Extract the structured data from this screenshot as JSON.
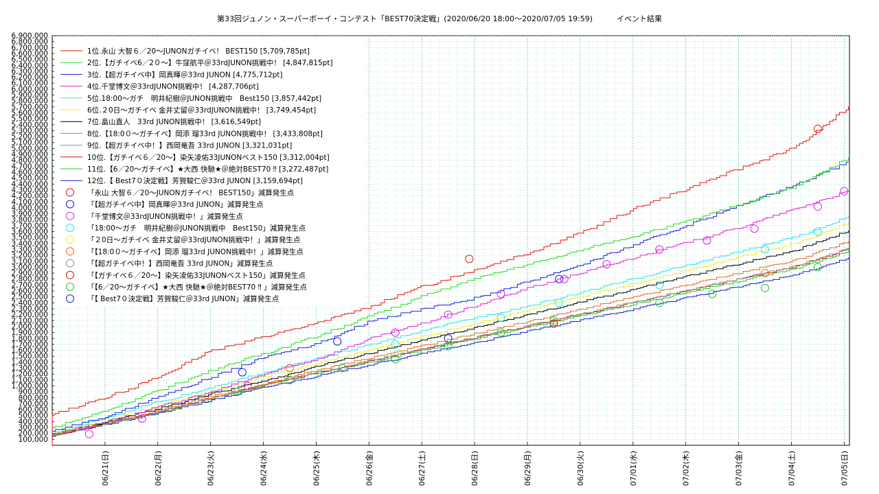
{
  "chart_data": {
    "type": "line",
    "title": "第33回ジュノン・スーパーボーイ・コンテスト「BEST70決定戦」(2020/06/20 18:00〜2020/07/05 19:59)          イベント結果",
    "xlabel": "",
    "ylabel": "",
    "x_tick_labels": [
      "06/21(日)",
      "06/22(月)",
      "06/23(火)",
      "06/24(水)",
      "06/25(木)",
      "06/26(金)",
      "06/27(土)",
      "06/28(日)",
      "06/29(月)",
      "06/30(火)",
      "07/01(水)",
      "07/02(木)",
      "07/03(金)",
      "07/04(土)",
      "07/05(日)"
    ],
    "x_range_days": [
      0,
      15.1
    ],
    "ylim": [
      0,
      6900000
    ],
    "y_tick_step": 100000,
    "grid": true,
    "legend_position": "top-left",
    "series": [
      {
        "name": "1位.永山 大智６／20〜JUNONガチイベ！ BEST150 [5,709,785pt]",
        "color": "#e8140c",
        "final": 5709785,
        "curve": [
          0.09,
          0.14,
          0.2,
          0.28,
          0.32,
          0.36,
          0.41,
          0.47,
          0.52,
          0.57,
          0.63,
          0.7,
          0.76,
          0.82,
          0.88,
          1.0
        ],
        "marks": [
          [
            7.9,
            3140000
          ],
          [
            14.5,
            5330000
          ]
        ]
      },
      {
        "name": "2位.【ガチイベ6／2０〜】牛窪航平＠33rdJUNON挑戦中！ [4,847,815pt]",
        "color": "#22dd22",
        "final": 4847815,
        "curve": [
          0.06,
          0.12,
          0.19,
          0.26,
          0.32,
          0.38,
          0.45,
          0.52,
          0.58,
          0.63,
          0.68,
          0.73,
          0.78,
          0.84,
          0.9,
          1.0
        ],
        "marks": []
      },
      {
        "name": "3位.【超ガチイベ中】岡真暉＠33rd JUNON [4,775,712pt]",
        "color": "#1a1ae0",
        "final": 4775712,
        "curve": [
          0.05,
          0.1,
          0.17,
          0.24,
          0.31,
          0.36,
          0.44,
          0.48,
          0.52,
          0.58,
          0.64,
          0.71,
          0.78,
          0.85,
          0.92,
          1.0
        ],
        "marks": [
          [
            3.6,
            1230000
          ],
          [
            5.4,
            1750000
          ],
          [
            7.5,
            1800000
          ],
          [
            9.6,
            2800000
          ]
        ]
      },
      {
        "name": "4位.千堂博文＠33rdJUNON挑戦中！ [4,287,706pt]",
        "color": "#e020e0",
        "final": 4287706,
        "curve": [
          0.04,
          0.09,
          0.15,
          0.21,
          0.28,
          0.34,
          0.42,
          0.48,
          0.55,
          0.62,
          0.68,
          0.74,
          0.8,
          0.86,
          0.93,
          1.0
        ],
        "marks": [
          [
            0.7,
            190000
          ],
          [
            1.7,
            450000
          ],
          [
            3.7,
            1000000
          ],
          [
            6.5,
            1900000
          ],
          [
            7.5,
            2200000
          ],
          [
            8.5,
            2550000
          ],
          [
            9.7,
            2800000
          ],
          [
            10.5,
            3050000
          ],
          [
            11.5,
            3300000
          ],
          [
            12.4,
            3450000
          ],
          [
            13.3,
            3650000
          ],
          [
            14.5,
            4020000
          ],
          [
            15.0,
            4280000
          ]
        ]
      },
      {
        "name": "5位.18:00〜ガチ　明井紀樹＠JUNON挑戦中　Best150 [3,857,442pt]",
        "color": "#22e8e8",
        "final": 3857442,
        "curve": [
          0.05,
          0.12,
          0.19,
          0.25,
          0.32,
          0.38,
          0.44,
          0.5,
          0.56,
          0.61,
          0.67,
          0.73,
          0.79,
          0.85,
          0.91,
          1.0
        ],
        "marks": [
          [
            6.5,
            1700000
          ],
          [
            8.5,
            2150000
          ],
          [
            9.6,
            2400000
          ],
          [
            11.5,
            2700000
          ],
          [
            13.5,
            3300000
          ],
          [
            14.5,
            3600000
          ]
        ]
      },
      {
        "name": "6位.２0日〜ガチイベ 金井丈留＠33rdJUNON挑戦中！ [3,749,454pt]",
        "color": "#f0f020",
        "final": 3749454,
        "curve": [
          0.05,
          0.11,
          0.18,
          0.24,
          0.31,
          0.37,
          0.43,
          0.49,
          0.55,
          0.61,
          0.67,
          0.73,
          0.79,
          0.85,
          0.91,
          1.0
        ],
        "marks": []
      },
      {
        "name": "7位.畠山直人　33rd JUNON挑戦中！ [3,616,549pt]",
        "color": "#000000",
        "final": 3616549,
        "curve": [
          0.05,
          0.11,
          0.17,
          0.24,
          0.3,
          0.37,
          0.43,
          0.49,
          0.55,
          0.61,
          0.67,
          0.73,
          0.79,
          0.85,
          0.91,
          1.0
        ],
        "marks": []
      },
      {
        "name": "8位.【18:0０〜ガチイベ】岡添 瑠33rd JUNON挑戦中！ [3,433,808pt]",
        "color": "#e86a1a",
        "final": 3433808,
        "curve": [
          0.05,
          0.11,
          0.17,
          0.24,
          0.3,
          0.37,
          0.43,
          0.49,
          0.55,
          0.61,
          0.67,
          0.73,
          0.79,
          0.85,
          0.91,
          1.0
        ],
        "marks": [
          [
            4.5,
            1300000
          ],
          [
            13.5,
            2900000
          ]
        ]
      },
      {
        "name": "9位.【超ガチイベ中！】西岡竜吾 33rd JUNON [3,321,031pt]",
        "color": "#909090",
        "final": 3321031,
        "curve": [
          0.05,
          0.11,
          0.17,
          0.24,
          0.31,
          0.37,
          0.43,
          0.49,
          0.55,
          0.61,
          0.67,
          0.73,
          0.79,
          0.85,
          0.91,
          1.0
        ],
        "marks": []
      },
      {
        "name": "10位.【ガチイベ６／20〜】染矢凌佑33JUNONベスト150 [3,312,004pt]",
        "color": "#d01010",
        "final": 3312004,
        "curve": [
          0.05,
          0.11,
          0.17,
          0.24,
          0.31,
          0.37,
          0.43,
          0.49,
          0.55,
          0.61,
          0.67,
          0.73,
          0.79,
          0.85,
          0.91,
          1.0
        ],
        "marks": [
          [
            9.5,
            2050000
          ]
        ]
      },
      {
        "name": "11位.【6／20〜ガチイベ】★大西 快馳★＠絶対BEST70 ‼ [3,272,487pt]",
        "color": "#22cc22",
        "final": 3272487,
        "curve": [
          0.05,
          0.11,
          0.17,
          0.24,
          0.31,
          0.37,
          0.43,
          0.49,
          0.55,
          0.61,
          0.67,
          0.73,
          0.79,
          0.85,
          0.91,
          1.0
        ],
        "marks": [
          [
            3.5,
            900000
          ],
          [
            4.5,
            1100000
          ],
          [
            5.5,
            1300000
          ],
          [
            6.5,
            1450000
          ],
          [
            7.5,
            1670000
          ],
          [
            8.5,
            1900000
          ],
          [
            9.5,
            2100000
          ],
          [
            11.5,
            2400000
          ],
          [
            12.5,
            2550000
          ],
          [
            13.5,
            2650000
          ],
          [
            14.5,
            3000000
          ]
        ]
      },
      {
        "name": "12位.【 Best7０決定戦】芳賀駿仁＠33rd JUNON [3,159,694pt]",
        "color": "#1a1ad0",
        "final": 3159694,
        "curve": [
          0.05,
          0.11,
          0.17,
          0.24,
          0.31,
          0.37,
          0.43,
          0.49,
          0.55,
          0.61,
          0.67,
          0.73,
          0.79,
          0.85,
          0.91,
          1.0
        ],
        "marks": []
      }
    ],
    "mark_legend": [
      {
        "label": "「永山 大智６／20〜JUNONガチイベ！ BEST150」減算発生点",
        "color": "#e8140c"
      },
      {
        "label": "「【超ガチイベ中】岡真暉＠33rd JUNON」減算発生点",
        "color": "#1a1ae0"
      },
      {
        "label": "「千堂博文＠33rdJUNON挑戦中！」減算発生点",
        "color": "#e020e0"
      },
      {
        "label": "「18:00〜ガチ　明井紀樹＠JUNON挑戦中　Best150」減算発生点",
        "color": "#22e8e8"
      },
      {
        "label": "「２0日〜ガチイベ 金井丈留＠33rdJUNON挑戦中！」減算発生点",
        "color": "#f0f020"
      },
      {
        "label": "「【18:0０〜ガチイベ】岡添 瑠33rd JUNON挑戦中！」減算発生点",
        "color": "#e86a1a"
      },
      {
        "label": "「【超ガチイベ中！】西岡竜吾 33rd JUNON」減算発生点",
        "color": "#909090"
      },
      {
        "label": "「【ガチイベ６／20〜】染矢凌佑33JUNONベスト150」減算発生点",
        "color": "#d01010"
      },
      {
        "label": "「【6／20〜ガチイベ】★大西 快馳★＠絶対BEST70 ‼ 」減算発生点",
        "color": "#22cc22"
      },
      {
        "label": "「【 Best7０決定戦】芳賀駿仁＠33rd JUNON」減算発生点",
        "color": "#1a1ad0"
      }
    ]
  }
}
